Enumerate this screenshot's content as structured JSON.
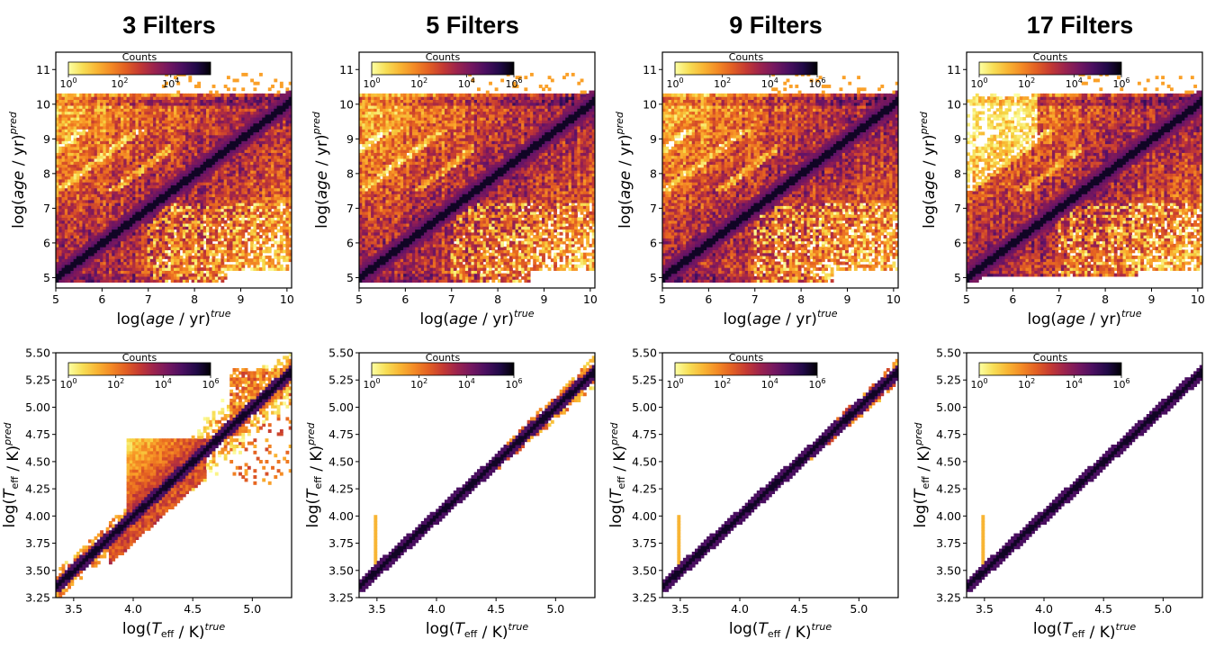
{
  "chart_data": [
    {
      "type": "heatmap",
      "title": "3 Filters",
      "row": "age",
      "xlim": [
        5,
        10.1
      ],
      "ylim": [
        4.7,
        11.5
      ],
      "xticks": [
        "5",
        "6",
        "7",
        "8",
        "9",
        "10"
      ],
      "yticks": [
        "5",
        "6",
        "7",
        "8",
        "9",
        "10",
        "11"
      ],
      "xlabel": "log(age / yr)^true",
      "ylabel": "log(age / yr)^pred",
      "colorbar": {
        "label": "Counts",
        "ticks": [
          "10^0",
          "10^2",
          "10^4"
        ],
        "scale": "log",
        "colormap": "inferno_r"
      },
      "diagonal": true,
      "spread": "wide",
      "upper_band": [
        10.0,
        10.3
      ],
      "lower_floor": 4.9
    },
    {
      "type": "heatmap",
      "title": "5 Filters",
      "row": "age",
      "xlim": [
        5,
        10.1
      ],
      "ylim": [
        4.7,
        11.5
      ],
      "xticks": [
        "5",
        "6",
        "7",
        "8",
        "9",
        "10"
      ],
      "yticks": [
        "5",
        "6",
        "7",
        "8",
        "9",
        "10",
        "11"
      ],
      "xlabel": "log(age / yr)^true",
      "ylabel": "log(age / yr)^pred",
      "colorbar": {
        "label": "Counts",
        "ticks": [
          "10^0",
          "10^2",
          "10^4",
          "10^6"
        ],
        "scale": "log",
        "colormap": "inferno_r"
      },
      "diagonal": true,
      "spread": "wide",
      "upper_band": [
        10.0,
        10.3
      ],
      "lower_floor": 4.9
    },
    {
      "type": "heatmap",
      "title": "9 Filters",
      "row": "age",
      "xlim": [
        5,
        10.1
      ],
      "ylim": [
        4.7,
        11.5
      ],
      "xticks": [
        "5",
        "6",
        "7",
        "8",
        "9",
        "10"
      ],
      "yticks": [
        "5",
        "6",
        "7",
        "8",
        "9",
        "10",
        "11"
      ],
      "xlabel": "log(age / yr)^true",
      "ylabel": "log(age / yr)^pred",
      "colorbar": {
        "label": "Counts",
        "ticks": [
          "10^0",
          "10^2",
          "10^4",
          "10^6"
        ],
        "scale": "log",
        "colormap": "inferno_r"
      },
      "diagonal": true,
      "spread": "wide",
      "upper_band": [
        10.0,
        10.3
      ],
      "lower_floor": 4.9
    },
    {
      "type": "heatmap",
      "title": "17 Filters",
      "row": "age",
      "xlim": [
        5,
        10.1
      ],
      "ylim": [
        4.7,
        11.5
      ],
      "xticks": [
        "5",
        "6",
        "7",
        "8",
        "9",
        "10"
      ],
      "yticks": [
        "5",
        "6",
        "7",
        "8",
        "9",
        "10",
        "11"
      ],
      "xlabel": "log(age / yr)^true",
      "ylabel": "log(age / yr)^pred",
      "colorbar": {
        "label": "Counts",
        "ticks": [
          "10^0",
          "10^2",
          "10^4",
          "10^6"
        ],
        "scale": "log",
        "colormap": "inferno_r"
      },
      "diagonal": true,
      "spread": "moderate",
      "upper_band": [
        10.0,
        10.4
      ],
      "lower_floor": 5.0
    },
    {
      "type": "heatmap",
      "row": "teff",
      "xlim": [
        3.35,
        5.33
      ],
      "ylim": [
        3.25,
        5.5
      ],
      "xticks": [
        "3.5",
        "4.0",
        "4.5",
        "5.0"
      ],
      "yticks": [
        "3.25",
        "3.50",
        "3.75",
        "4.00",
        "4.25",
        "4.50",
        "4.75",
        "5.00",
        "5.25",
        "5.50"
      ],
      "xlabel": "log(T_eff / K)^true",
      "ylabel": "log(T_eff / K)^pred",
      "colorbar": {
        "label": "Counts",
        "ticks": [
          "10^0",
          "10^2",
          "10^4",
          "10^6"
        ],
        "scale": "log",
        "colormap": "inferno_r"
      },
      "diagonal": true,
      "spread": 0.35,
      "plateau": 4.7
    },
    {
      "type": "heatmap",
      "row": "teff",
      "xlim": [
        3.35,
        5.33
      ],
      "ylim": [
        3.25,
        5.5
      ],
      "xticks": [
        "3.5",
        "4.0",
        "4.5",
        "5.0"
      ],
      "yticks": [
        "3.25",
        "3.50",
        "3.75",
        "4.00",
        "4.25",
        "4.50",
        "4.75",
        "5.00",
        "5.25",
        "5.50"
      ],
      "xlabel": "log(T_eff / K)^true",
      "ylabel": "log(T_eff / K)^pred",
      "colorbar": {
        "label": "Counts",
        "ticks": [
          "10^0",
          "10^2",
          "10^4",
          "10^6"
        ],
        "scale": "log",
        "colormap": "inferno_r"
      },
      "diagonal": true,
      "spread": 0.1,
      "plateau": null
    },
    {
      "type": "heatmap",
      "row": "teff",
      "xlim": [
        3.35,
        5.33
      ],
      "ylim": [
        3.25,
        5.5
      ],
      "xticks": [
        "3.5",
        "4.0",
        "4.5",
        "5.0"
      ],
      "yticks": [
        "3.25",
        "3.50",
        "3.75",
        "4.00",
        "4.25",
        "4.50",
        "4.75",
        "5.00",
        "5.25",
        "5.50"
      ],
      "xlabel": "log(T_eff / K)^true",
      "ylabel": "log(T_eff / K)^pred",
      "colorbar": {
        "label": "Counts",
        "ticks": [
          "10^0",
          "10^2",
          "10^4",
          "10^6"
        ],
        "scale": "log",
        "colormap": "inferno_r"
      },
      "diagonal": true,
      "spread": 0.08,
      "plateau": null
    },
    {
      "type": "heatmap",
      "row": "teff",
      "xlim": [
        3.35,
        5.33
      ],
      "ylim": [
        3.25,
        5.5
      ],
      "xticks": [
        "3.5",
        "4.0",
        "4.5",
        "5.0"
      ],
      "yticks": [
        "3.25",
        "3.50",
        "3.75",
        "4.00",
        "4.25",
        "4.50",
        "4.75",
        "5.00",
        "5.25",
        "5.50"
      ],
      "xlabel": "log(T_eff / K)^true",
      "ylabel": "log(T_eff / K)^pred",
      "colorbar": {
        "label": "Counts",
        "ticks": [
          "10^0",
          "10^2",
          "10^4",
          "10^6"
        ],
        "scale": "log",
        "colormap": "inferno_r"
      },
      "diagonal": true,
      "spread": 0.05,
      "plateau": null
    }
  ],
  "colors": {
    "low": "#fcffa4",
    "mid": "#f98e09",
    "high": "#000004",
    "background": "#ffffff"
  }
}
